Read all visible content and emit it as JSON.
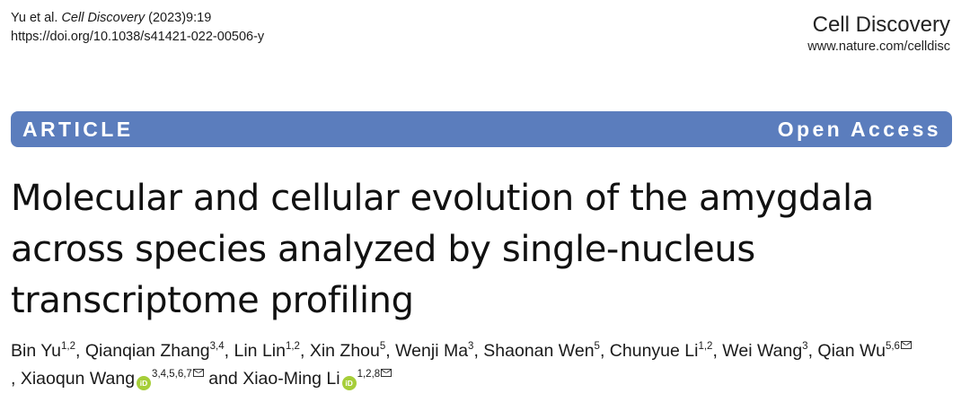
{
  "citation": {
    "authors_short": "Yu et al.",
    "journal": "Cell Discovery",
    "year_volume": "(2023)9:19",
    "doi_url": "https://doi.org/10.1038/s41421-022-00506-y"
  },
  "masthead": {
    "journal_name": "Cell Discovery",
    "journal_url": "www.nature.com/celldisc"
  },
  "banner": {
    "article_type": "ARTICLE",
    "access": "Open Access",
    "color": "#5b7dbd"
  },
  "title": {
    "lines": [
      "Molecular and cellular evolution of the amygdala",
      "across species analyzed by single-nucleus",
      "transcriptome profiling"
    ]
  },
  "authors": [
    {
      "name": "Bin Yu",
      "aff": "1,2",
      "sep": ", "
    },
    {
      "name": "Qianqian Zhang",
      "aff": "3,4",
      "sep": ", "
    },
    {
      "name": "Lin Lin",
      "aff": "1,2",
      "sep": ", "
    },
    {
      "name": "Xin Zhou",
      "aff": "5",
      "sep": ", "
    },
    {
      "name": "Wenji Ma",
      "aff": "3",
      "sep": ", "
    },
    {
      "name": "Shaonan Wen",
      "aff": "5",
      "sep": ", "
    },
    {
      "name": "Chunyue Li",
      "aff": "1,2",
      "sep": ", "
    },
    {
      "name": "Wei Wang",
      "aff": "3",
      "sep": ", "
    },
    {
      "name": "Qian Wu",
      "aff": "5,6",
      "sep": ", ",
      "corresponding": true
    },
    {
      "name": "Xiaoqun Wang",
      "aff": "3,4,5,6,7",
      "sep": " and ",
      "orcid": true,
      "corresponding": true
    },
    {
      "name": "Xiao-Ming Li",
      "aff": "1,2,8",
      "sep": "",
      "orcid": true,
      "corresponding": true
    }
  ],
  "icons": {
    "orcid": "orcid-icon",
    "email": "envelope-icon"
  },
  "orcid_text": "iD"
}
